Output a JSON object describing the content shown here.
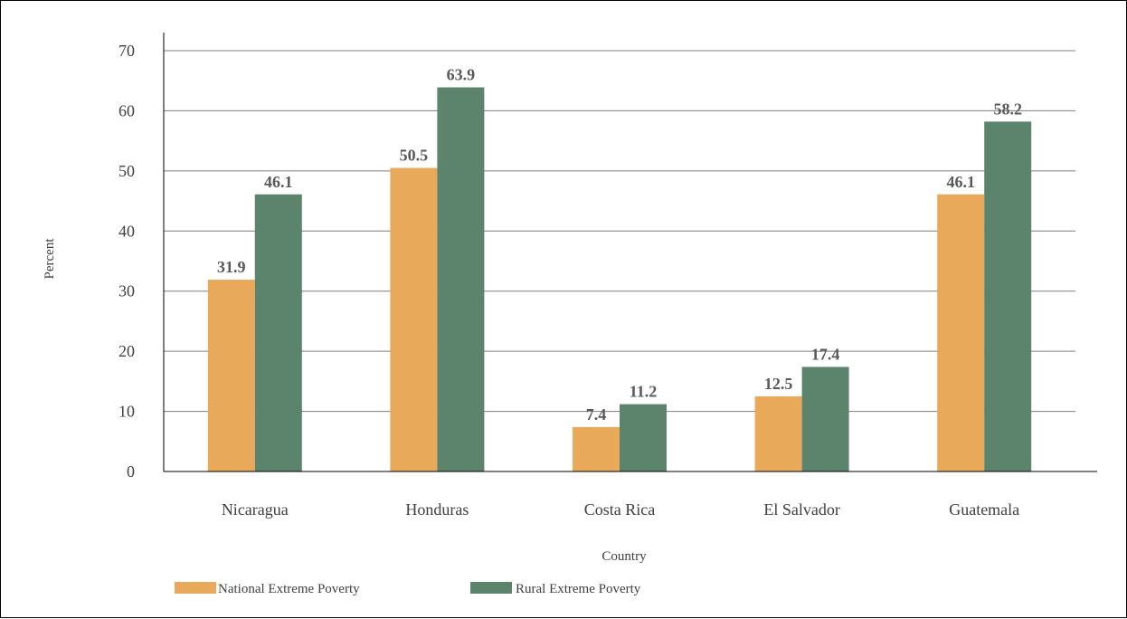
{
  "chart_data": {
    "type": "bar",
    "categories": [
      "Nicaragua",
      "Honduras",
      "Costa Rica",
      "El Salvador",
      "Guatemala"
    ],
    "series": [
      {
        "name": "National Extreme Poverty",
        "values": [
          31.9,
          50.5,
          7.4,
          12.5,
          46.1
        ],
        "color": "#E8A95B"
      },
      {
        "name": "Rural Extreme Poverty",
        "values": [
          46.1,
          63.9,
          11.2,
          17.4,
          58.2
        ],
        "color": "#5C846D"
      }
    ],
    "xlabel": "Country",
    "ylabel": "Percent",
    "ylim": [
      0,
      70
    ],
    "yticks": [
      0,
      10,
      20,
      30,
      40,
      50,
      60,
      70
    ],
    "grid": true,
    "legend_position": "bottom-left",
    "data_labels": true
  }
}
